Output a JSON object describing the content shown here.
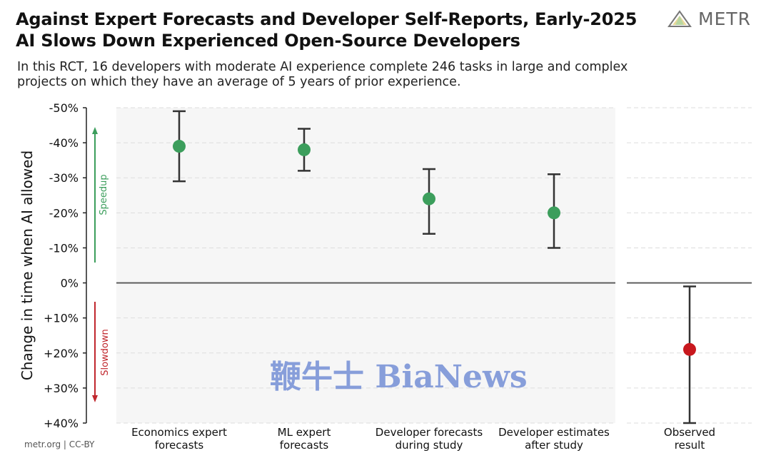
{
  "header": {
    "title_line1": "Against Expert Forecasts and Developer Self-Reports, Early-2025",
    "title_line2": "AI Slows Down Experienced Open-Source Developers",
    "subtitle_line1": "In this RCT, 16 developers with moderate AI experience complete 246 tasks in large and complex",
    "subtitle_line2": "projects on which they have an average of 5 years of prior experience.",
    "logo_text": "METR"
  },
  "footer": {
    "credit": "metr.org  |  CC-BY"
  },
  "watermark": {
    "text": "鞭牛士 BiaNews"
  },
  "chart_data": {
    "type": "scatter",
    "ylabel": "Change in time when AI allowed",
    "ylim": [
      -50,
      40
    ],
    "y_ticks": [
      -50,
      -40,
      -30,
      -20,
      -10,
      0,
      10,
      20,
      30,
      40
    ],
    "y_tick_labels": [
      "-50%",
      "-40%",
      "-30%",
      "-20%",
      "-10%",
      "0%",
      "+10%",
      "+20%",
      "+30%",
      "+40%"
    ],
    "annotations": {
      "speedup": "Speedup",
      "slowdown": "Slowdown"
    },
    "grid": true,
    "categories": [
      {
        "label_line1": "Economics expert",
        "label_line2": "forecasts",
        "value": -39,
        "ci_low": -49,
        "ci_high": -29,
        "panel": "forecasts",
        "color": "#3c9e5c"
      },
      {
        "label_line1": "ML expert",
        "label_line2": "forecasts",
        "value": -38,
        "ci_low": -44,
        "ci_high": -32,
        "panel": "forecasts",
        "color": "#3c9e5c"
      },
      {
        "label_line1": "Developer forecasts",
        "label_line2": "during study",
        "value": -24,
        "ci_low": -32.5,
        "ci_high": -14,
        "panel": "forecasts",
        "color": "#3c9e5c"
      },
      {
        "label_line1": "Developer estimates",
        "label_line2": "after study",
        "value": -20,
        "ci_low": -31,
        "ci_high": -10,
        "panel": "forecasts",
        "color": "#3c9e5c"
      },
      {
        "label_line1": "Observed",
        "label_line2": "result",
        "value": 19,
        "ci_low": 1,
        "ci_high": 40,
        "panel": "observed",
        "color": "#c8181e"
      }
    ],
    "colors": {
      "speedup": "#3c9e5c",
      "slowdown": "#c0272d",
      "panel_bg": "#f6f6f6"
    }
  }
}
